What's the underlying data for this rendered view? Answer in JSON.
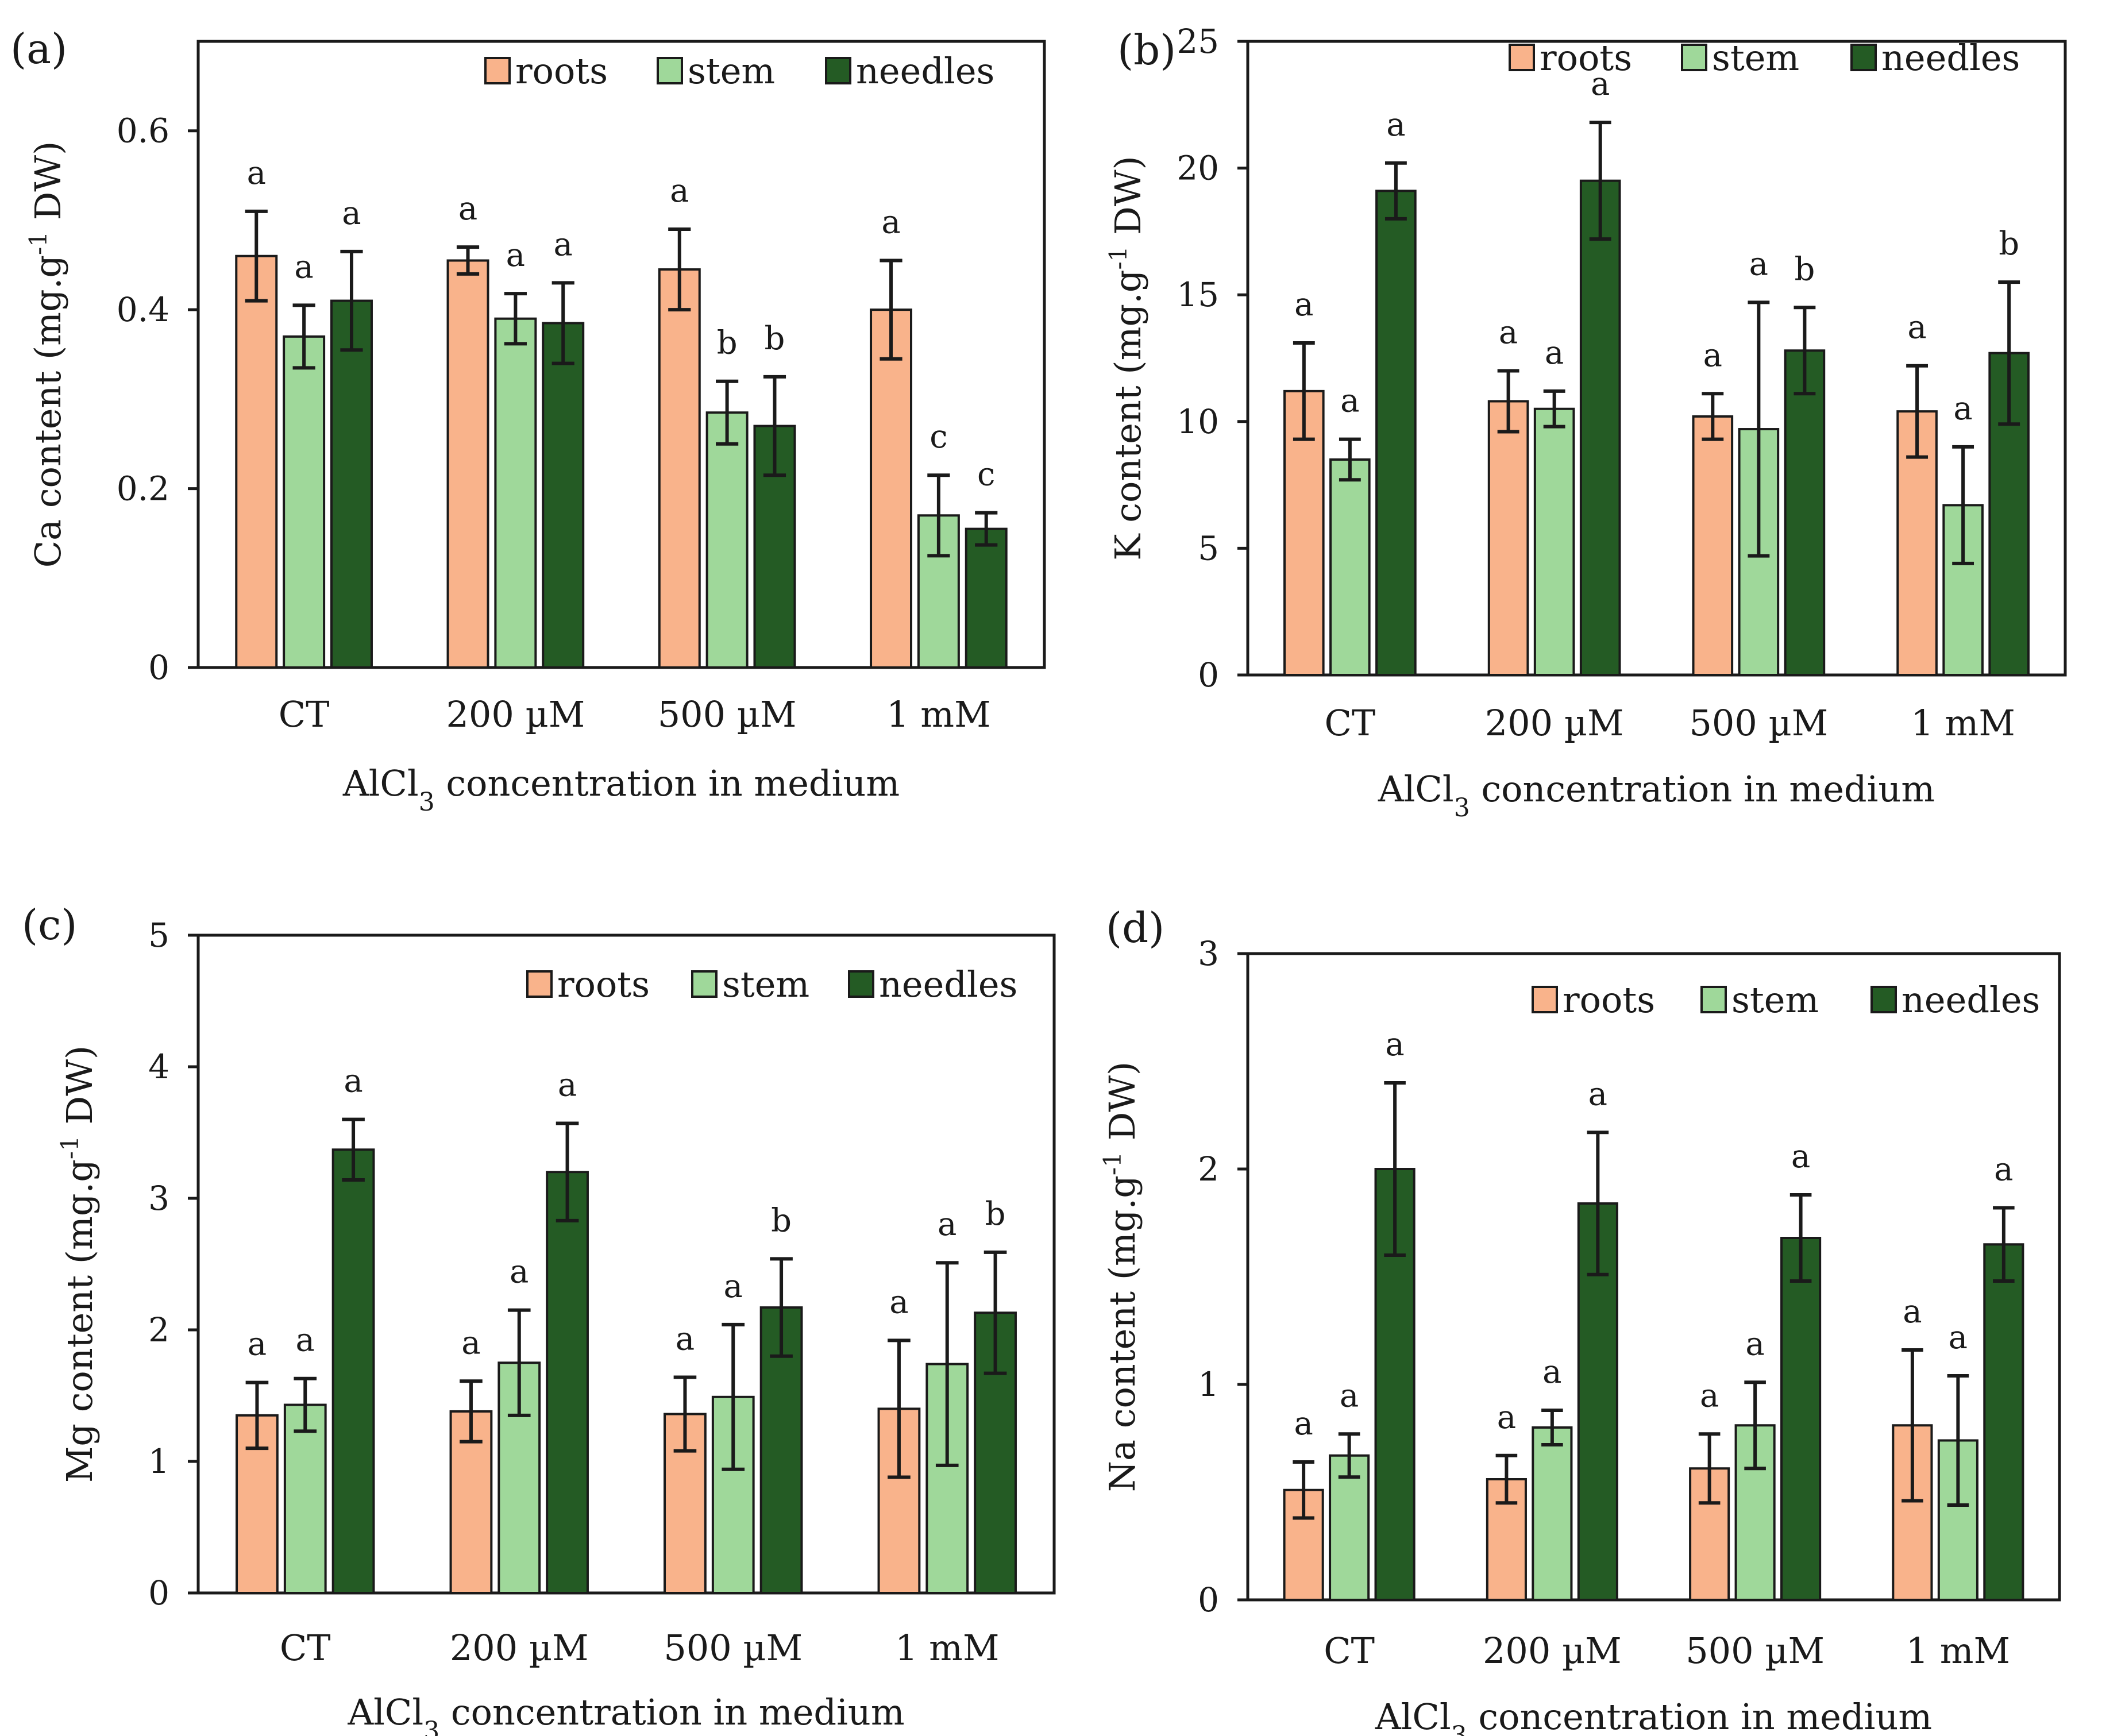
{
  "colors": {
    "roots": "#f9b38b",
    "stem": "#9fd89a",
    "needles": "#245b24"
  },
  "chart_data": [
    {
      "type": "bar",
      "panel_label": "(a)",
      "ylabel": "Ca content (mg.g-1 DW)",
      "ylabel_parts": {
        "pre": "Ca content (mg.g",
        "sup": "-1",
        "post": " DW)"
      },
      "xlabel": "AlCl3 concentration in medium",
      "xlabel_parts": {
        "pre": "AlCl",
        "sub": "3",
        "post": " concentration in medium"
      },
      "categories": [
        "CT",
        "200 µM",
        "500 µM",
        "1 mM"
      ],
      "ylim": [
        0,
        0.7
      ],
      "yticks": [
        0,
        0.2,
        0.4,
        0.6
      ],
      "ytick_labels": [
        "0",
        "0.2",
        "0.4",
        "0.6"
      ],
      "legend": [
        "roots",
        "stem",
        "needles"
      ],
      "series": [
        {
          "name": "roots",
          "values": [
            0.46,
            0.455,
            0.445,
            0.4
          ],
          "errors": [
            0.05,
            0.015,
            0.045,
            0.055
          ],
          "sig": [
            "a",
            "a",
            "a",
            "a"
          ]
        },
        {
          "name": "stem",
          "values": [
            0.37,
            0.39,
            0.285,
            0.17
          ],
          "errors": [
            0.035,
            0.028,
            0.035,
            0.045
          ],
          "sig": [
            "a",
            "a",
            "b",
            "c"
          ]
        },
        {
          "name": "needles",
          "values": [
            0.41,
            0.385,
            0.27,
            0.155
          ],
          "errors": [
            0.055,
            0.045,
            0.055,
            0.018
          ],
          "sig": [
            "a",
            "a",
            "b",
            "c"
          ]
        }
      ]
    },
    {
      "type": "bar",
      "panel_label": "(b)",
      "ylabel": "K content (mg.g-1 DW)",
      "ylabel_parts": {
        "pre": "K content (mg.g",
        "sup": "-1",
        "post": " DW)"
      },
      "xlabel": "AlCl3 concentration in medium",
      "xlabel_parts": {
        "pre": "AlCl",
        "sub": "3",
        "post": " concentration in medium"
      },
      "categories": [
        "CT",
        "200 µM",
        "500 µM",
        "1 mM"
      ],
      "ylim": [
        0,
        25
      ],
      "yticks": [
        0,
        5,
        10,
        15,
        20,
        25
      ],
      "ytick_labels": [
        "0",
        "5",
        "10",
        "15",
        "20",
        "25"
      ],
      "legend": [
        "roots",
        "stem",
        "needles"
      ],
      "series": [
        {
          "name": "roots",
          "values": [
            11.2,
            10.8,
            10.2,
            10.4
          ],
          "errors": [
            1.9,
            1.2,
            0.9,
            1.8
          ],
          "sig": [
            "a",
            "a",
            "a",
            "a"
          ]
        },
        {
          "name": "stem",
          "values": [
            8.5,
            10.5,
            9.7,
            6.7
          ],
          "errors": [
            0.8,
            0.7,
            5.0,
            2.3
          ],
          "sig": [
            "a",
            "a",
            "a",
            "a"
          ]
        },
        {
          "name": "needles",
          "values": [
            19.1,
            19.5,
            12.8,
            12.7
          ],
          "errors": [
            1.1,
            2.3,
            1.7,
            2.8
          ],
          "sig": [
            "a",
            "a",
            "b",
            "b"
          ]
        }
      ]
    },
    {
      "type": "bar",
      "panel_label": "(c)",
      "ylabel": "Mg content (mg.g-1 DW)",
      "ylabel_parts": {
        "pre": "Mg content (mg.g",
        "sup": "-1",
        "post": " DW)"
      },
      "xlabel": "AlCl3 concentration in medium",
      "xlabel_parts": {
        "pre": "AlCl",
        "sub": "3",
        "post": " concentration in medium"
      },
      "categories": [
        "CT",
        "200 µM",
        "500 µM",
        "1 mM"
      ],
      "ylim": [
        0,
        5
      ],
      "yticks": [
        0,
        1,
        2,
        3,
        4,
        5
      ],
      "ytick_labels": [
        "0",
        "1",
        "2",
        "3",
        "4",
        "5"
      ],
      "legend": [
        "roots",
        "stem",
        "needles"
      ],
      "series": [
        {
          "name": "roots",
          "values": [
            1.35,
            1.38,
            1.36,
            1.4
          ],
          "errors": [
            0.25,
            0.23,
            0.28,
            0.52
          ],
          "sig": [
            "a",
            "a",
            "a",
            "a"
          ]
        },
        {
          "name": "stem",
          "values": [
            1.43,
            1.75,
            1.49,
            1.74
          ],
          "errors": [
            0.2,
            0.4,
            0.55,
            0.77
          ],
          "sig": [
            "a",
            "a",
            "a",
            "a"
          ]
        },
        {
          "name": "needles",
          "values": [
            3.37,
            3.2,
            2.17,
            2.13
          ],
          "errors": [
            0.23,
            0.37,
            0.37,
            0.46
          ],
          "sig": [
            "a",
            "a",
            "b",
            "b"
          ]
        }
      ]
    },
    {
      "type": "bar",
      "panel_label": "(d)",
      "ylabel": "Na content (mg.g-1 DW)",
      "ylabel_parts": {
        "pre": "Na content (mg.g",
        "sup": "-1",
        "post": " DW)"
      },
      "xlabel": "AlCl3 concentration in medium",
      "xlabel_parts": {
        "pre": "AlCl",
        "sub": "3",
        "post": " concentration in medium"
      },
      "categories": [
        "CT",
        "200 µM",
        "500 µM",
        "1 mM"
      ],
      "ylim": [
        0,
        3
      ],
      "yticks": [
        0,
        1,
        2,
        3
      ],
      "ytick_labels": [
        "0",
        "1",
        "2",
        "3"
      ],
      "legend": [
        "roots",
        "stem",
        "needles"
      ],
      "series": [
        {
          "name": "roots",
          "values": [
            0.51,
            0.56,
            0.61,
            0.81
          ],
          "errors": [
            0.13,
            0.11,
            0.16,
            0.35
          ],
          "sig": [
            "a",
            "a",
            "a",
            "a"
          ]
        },
        {
          "name": "stem",
          "values": [
            0.67,
            0.8,
            0.81,
            0.74
          ],
          "errors": [
            0.1,
            0.08,
            0.2,
            0.3
          ],
          "sig": [
            "a",
            "a",
            "a",
            "a"
          ]
        },
        {
          "name": "needles",
          "values": [
            2.0,
            1.84,
            1.68,
            1.65
          ],
          "errors": [
            0.4,
            0.33,
            0.2,
            0.17
          ],
          "sig": [
            "a",
            "a",
            "a",
            "a"
          ]
        }
      ]
    }
  ]
}
